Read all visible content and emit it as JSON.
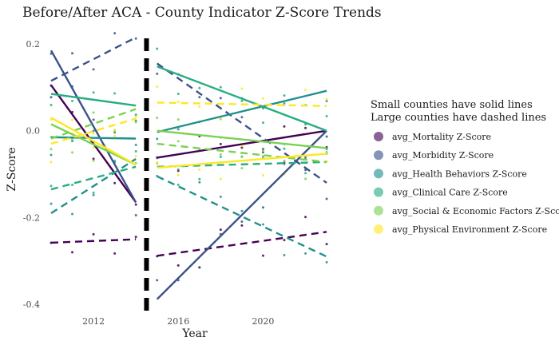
{
  "chart_data": {
    "type": "line",
    "title": "Before/After ACA - County Indicator Z-Score Trends",
    "xlabel": "Year",
    "ylabel": "Z-Score",
    "xlim": [
      2010.0,
      2023.6
    ],
    "ylim": [
      -0.42,
      0.235
    ],
    "x_ticks": [
      2012,
      2016,
      2020
    ],
    "y_ticks": [
      -0.4,
      -0.2,
      0.0,
      0.2
    ],
    "y_tick_labels": [
      "-0.4",
      "-0.2",
      "0.0",
      "0.2"
    ],
    "divider_x": 2014.5,
    "grid": false,
    "legend_position": "right",
    "legend_title_lines": [
      "Small counties have solid lines",
      "Large counties have dashed lines"
    ],
    "series": [
      {
        "name": "avg_Mortality Z-Score",
        "color": "#440154",
        "small_pre": [
          [
            2010,
            0.105
          ],
          [
            2014,
            -0.165
          ]
        ],
        "small_post": [
          [
            2015,
            -0.062
          ],
          [
            2023,
            0.0
          ]
        ],
        "large_pre": [
          [
            2010,
            -0.258
          ],
          [
            2014,
            -0.25
          ]
        ],
        "large_post": [
          [
            2015,
            -0.288
          ],
          [
            2023,
            -0.233
          ]
        ]
      },
      {
        "name": "avg_Morbidity Z-Score",
        "color": "#3b528b",
        "small_pre": [
          [
            2010,
            0.185
          ],
          [
            2014,
            -0.165
          ]
        ],
        "small_post": [
          [
            2015,
            -0.388
          ],
          [
            2023,
            0.0
          ]
        ],
        "large_pre": [
          [
            2010,
            0.115
          ],
          [
            2014,
            0.215
          ]
        ],
        "large_post": [
          [
            2015,
            0.155
          ],
          [
            2023,
            -0.12
          ]
        ]
      },
      {
        "name": "avg_Health Behaviors Z-Score",
        "color": "#21908c",
        "small_pre": [
          [
            2010,
            -0.015
          ],
          [
            2014,
            -0.018
          ]
        ],
        "small_post": [
          [
            2015,
            -0.003
          ],
          [
            2023,
            0.092
          ]
        ],
        "large_pre": [
          [
            2010,
            -0.19
          ],
          [
            2014,
            -0.065
          ]
        ],
        "large_post": [
          [
            2015,
            -0.105
          ],
          [
            2023,
            -0.29
          ]
        ]
      },
      {
        "name": "avg_Clinical Care Z-Score",
        "color": "#27ad81",
        "small_pre": [
          [
            2010,
            0.085
          ],
          [
            2014,
            0.058
          ]
        ],
        "small_post": [
          [
            2015,
            0.148
          ],
          [
            2023,
            0.0
          ]
        ],
        "large_pre": [
          [
            2010,
            -0.135
          ],
          [
            2014,
            -0.083
          ]
        ],
        "large_post": [
          [
            2015,
            -0.083
          ],
          [
            2023,
            -0.072
          ]
        ]
      },
      {
        "name": "avg_Social & Economic Factors Z-Score",
        "color": "#7ad151",
        "small_pre": [
          [
            2010,
            0.015
          ],
          [
            2014,
            -0.078
          ]
        ],
        "small_post": [
          [
            2015,
            0.0
          ],
          [
            2023,
            -0.04
          ]
        ],
        "large_pre": [
          [
            2010,
            -0.018
          ],
          [
            2014,
            0.05
          ]
        ],
        "large_post": [
          [
            2015,
            -0.03
          ],
          [
            2023,
            -0.072
          ]
        ]
      },
      {
        "name": "avg_Physical Environment Z-Score",
        "color": "#fde725",
        "small_pre": [
          [
            2010,
            0.03
          ],
          [
            2014,
            -0.078
          ]
        ],
        "small_post": [
          [
            2015,
            -0.085
          ],
          [
            2023,
            -0.053
          ]
        ],
        "large_pre": [
          [
            2010,
            -0.03
          ],
          [
            2014,
            0.028
          ]
        ],
        "large_post": [
          [
            2015,
            0.065
          ],
          [
            2023,
            0.057
          ]
        ]
      }
    ]
  }
}
